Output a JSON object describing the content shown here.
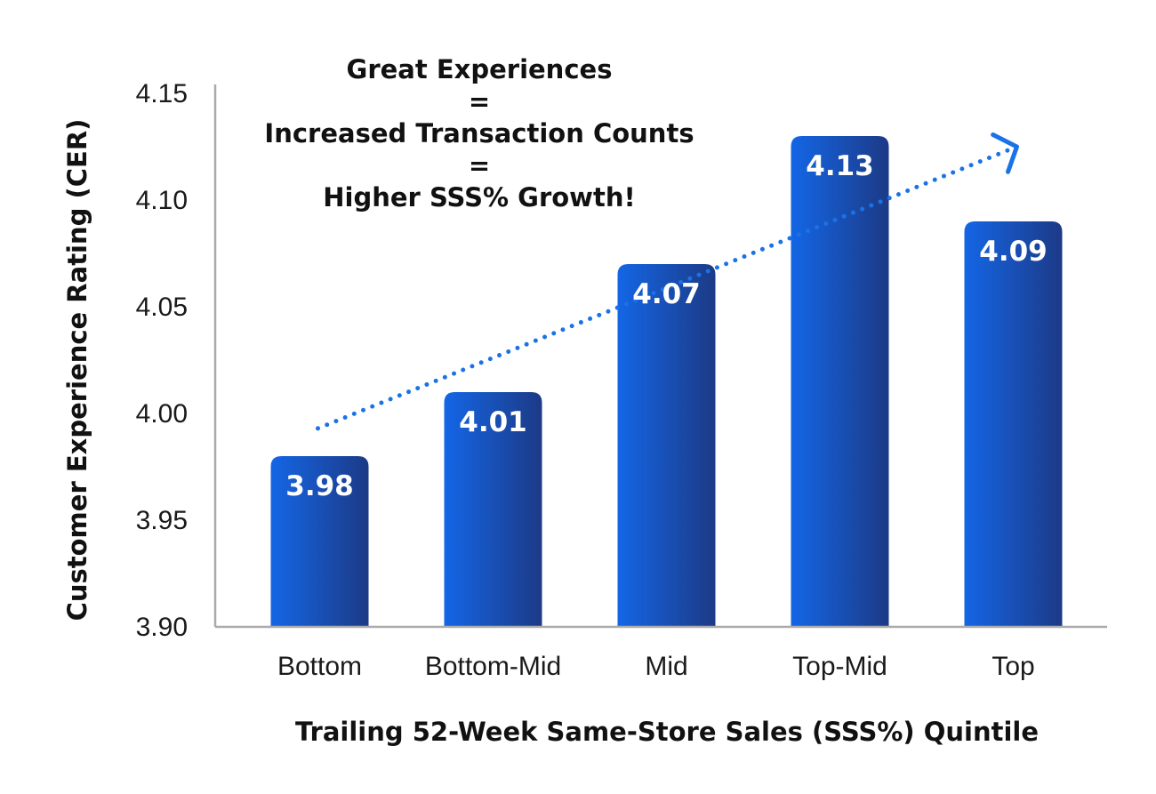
{
  "chart_data": {
    "type": "bar",
    "categories": [
      "Bottom",
      "Bottom-Mid",
      "Mid",
      "Top-Mid",
      "Top"
    ],
    "values": [
      3.98,
      4.01,
      4.07,
      4.13,
      4.09
    ],
    "value_labels": [
      "3.98",
      "4.01",
      "4.07",
      "4.13",
      "4.09"
    ],
    "title": "",
    "xlabel": "Trailing 52-Week Same-Store Sales (SSS%) Quintile",
    "ylabel": "Customer Experience Rating (CER)",
    "ylim": [
      3.9,
      4.15
    ],
    "yticks": [
      3.9,
      3.95,
      4.0,
      4.05,
      4.1,
      4.15
    ],
    "ytick_labels": [
      "3.90",
      "3.95",
      "4.00",
      "4.05",
      "4.10",
      "4.15"
    ],
    "grid": false,
    "annotation": {
      "lines": [
        "Great Experiences",
        "=",
        "Increased Transaction Counts",
        "=",
        "Higher SSS% Growth!"
      ]
    },
    "trend_arrow": {
      "style": "dotted",
      "from_category": "Bottom",
      "to_category": "Top",
      "start_value": 3.993,
      "end_value": 4.125
    },
    "colors": {
      "bar_gradient_start": "#1466e6",
      "bar_gradient_end": "#1c3a86",
      "trend_arrow": "#1a72e6",
      "axis": "#aaaaaa",
      "text": "#111111"
    }
  }
}
